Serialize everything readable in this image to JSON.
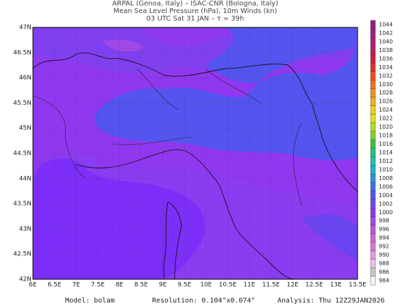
{
  "header": {
    "line1": "ARPAL (Genoa, Italy)  –  ISAC-CNR (Bologna, Italy)",
    "line2": "Mean Sea Level Pressure (hPa), 10m Winds (kn)",
    "line3": "03 UTC Sat 31 JAN  –  τ = 39h"
  },
  "map": {
    "lat_labels": [
      "47N",
      "46.5N",
      "46N",
      "45.5N",
      "45N",
      "44.5N",
      "44N",
      "43.5N",
      "43N",
      "42.5N",
      "42N"
    ],
    "lon_labels": [
      "6E",
      "6.5E",
      "7E",
      "7.5E",
      "8E",
      "8.5E",
      "9E",
      "9.5E",
      "10E",
      "10.5E",
      "11E",
      "11.5E",
      "12E",
      "12.5E",
      "13E",
      "13.5E"
    ]
  },
  "colorbar": {
    "levels": [
      984,
      986,
      988,
      990,
      992,
      994,
      996,
      998,
      1000,
      1002,
      1004,
      1006,
      1008,
      1010,
      1012,
      1014,
      1016,
      1018,
      1020,
      1022,
      1024,
      1026,
      1028,
      1030,
      1032,
      1034,
      1036,
      1038,
      1040,
      1042,
      1044
    ],
    "colors": [
      "#f4f4f4",
      "#c8c8c8",
      "#ecc0e8",
      "#e49ae0",
      "#d878d8",
      "#c868d0",
      "#b858d8",
      "#a448e4",
      "#9038f0",
      "#7048f0",
      "#5454f0",
      "#4070e0",
      "#3090e0",
      "#20b0d0",
      "#20c0b0",
      "#20c080",
      "#40c040",
      "#80d030",
      "#b0e020",
      "#e0e020",
      "#f0d020",
      "#f0b020",
      "#f09020",
      "#f07020",
      "#f05020",
      "#e03030",
      "#d02040",
      "#c02060",
      "#b02070",
      "#a02080",
      "#902080"
    ]
  },
  "footer": {
    "model": "Model: bolam",
    "resolution": "Resolution: 0.104°x0.074°",
    "analysis": "Analysis: Thu 12Z29JAN2026"
  }
}
